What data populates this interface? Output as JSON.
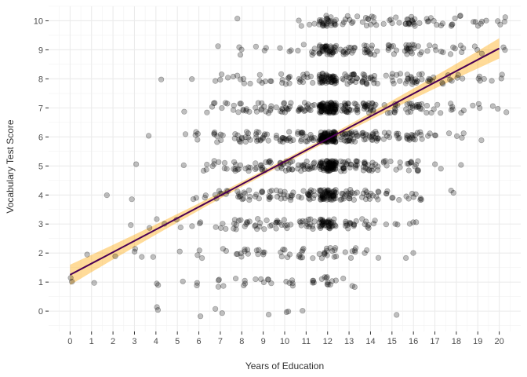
{
  "chart_data": {
    "type": "scatter",
    "title": "",
    "xlabel": "Years of Education",
    "ylabel": "Vocabulary Test Score",
    "xlim": [
      -1,
      21
    ],
    "ylim": [
      -0.7,
      10.5
    ],
    "x_ticks": [
      0,
      1,
      2,
      3,
      4,
      5,
      6,
      7,
      8,
      9,
      10,
      11,
      12,
      13,
      14,
      15,
      16,
      17,
      18,
      19,
      20
    ],
    "y_ticks": [
      0,
      1,
      2,
      3,
      4,
      5,
      6,
      7,
      8,
      9,
      10
    ],
    "grid": true,
    "legend": "none",
    "points_note_counts": "jittered points: counts per (education, vocabulary) cell",
    "series": [
      {
        "type": "scatter",
        "jitter": true,
        "color": "#000000",
        "opacity": 0.25,
        "counts_by_education": {
          "0": {
            "1": 2
          },
          "1": {
            "1": 1,
            "2": 1
          },
          "2": {
            "2": 1,
            "4": 1
          },
          "3": {
            "2": 3,
            "3": 1,
            "4": 1,
            "5": 1
          },
          "4": {
            "0": 2,
            "1": 2,
            "2": 1,
            "3": 3,
            "6": 1,
            "8": 1
          },
          "5": {
            "1": 1,
            "2": 1,
            "3": 2,
            "5": 1,
            "6": 1,
            "7": 1
          },
          "6": {
            "0": 1,
            "1": 2,
            "2": 3,
            "3": 3,
            "4": 4,
            "5": 3,
            "6": 4,
            "7": 1,
            "8": 1
          },
          "7": {
            "0": 2,
            "1": 4,
            "2": 2,
            "3": 4,
            "4": 8,
            "5": 7,
            "6": 8,
            "7": 6,
            "8": 4,
            "9": 1
          },
          "8": {
            "1": 4,
            "2": 8,
            "3": 12,
            "4": 12,
            "5": 12,
            "6": 14,
            "7": 10,
            "8": 6,
            "9": 3,
            "10": 1
          },
          "9": {
            "0": 1,
            "1": 6,
            "2": 6,
            "3": 10,
            "4": 12,
            "5": 14,
            "6": 14,
            "7": 12,
            "8": 6,
            "9": 3
          },
          "10": {
            "0": 2,
            "1": 5,
            "2": 6,
            "3": 12,
            "4": 14,
            "5": 16,
            "6": 16,
            "7": 14,
            "8": 8,
            "9": 3
          },
          "11": {
            "0": 1,
            "1": 4,
            "2": 8,
            "3": 14,
            "4": 16,
            "5": 18,
            "6": 18,
            "7": 16,
            "8": 10,
            "9": 6,
            "10": 4
          },
          "12": {
            "1": 10,
            "2": 14,
            "3": 40,
            "4": 60,
            "5": 80,
            "6": 100,
            "7": 90,
            "8": 50,
            "9": 40,
            "10": 28
          },
          "13": {
            "1": 3,
            "2": 6,
            "3": 12,
            "4": 18,
            "5": 24,
            "6": 28,
            "7": 26,
            "8": 18,
            "9": 14,
            "10": 8
          },
          "14": {
            "2": 3,
            "3": 8,
            "4": 14,
            "5": 18,
            "6": 22,
            "7": 22,
            "8": 18,
            "9": 14,
            "10": 10
          },
          "15": {
            "0": 1,
            "3": 3,
            "4": 6,
            "5": 8,
            "6": 10,
            "7": 10,
            "8": 8,
            "9": 8,
            "10": 6
          },
          "16": {
            "2": 2,
            "3": 3,
            "4": 8,
            "5": 12,
            "6": 16,
            "7": 18,
            "8": 18,
            "9": 18,
            "10": 16
          },
          "17": {
            "5": 2,
            "6": 4,
            "7": 6,
            "8": 8,
            "9": 6,
            "10": 8
          },
          "18": {
            "4": 2,
            "5": 1,
            "6": 4,
            "7": 6,
            "8": 6,
            "9": 6,
            "10": 6
          },
          "19": {
            "6": 1,
            "7": 3,
            "8": 4,
            "9": 3,
            "10": 6
          },
          "20": {
            "7": 3,
            "8": 3,
            "9": 2,
            "10": 4
          }
        }
      },
      {
        "type": "line",
        "x": [
          0,
          20
        ],
        "y": [
          1.25,
          9.05
        ],
        "color": "#4B0055",
        "band_color": "#FFA500",
        "band_opacity": 0.4,
        "band_half_width_at_ends": 0.35,
        "band_half_width_at_center": 0.08
      }
    ]
  }
}
